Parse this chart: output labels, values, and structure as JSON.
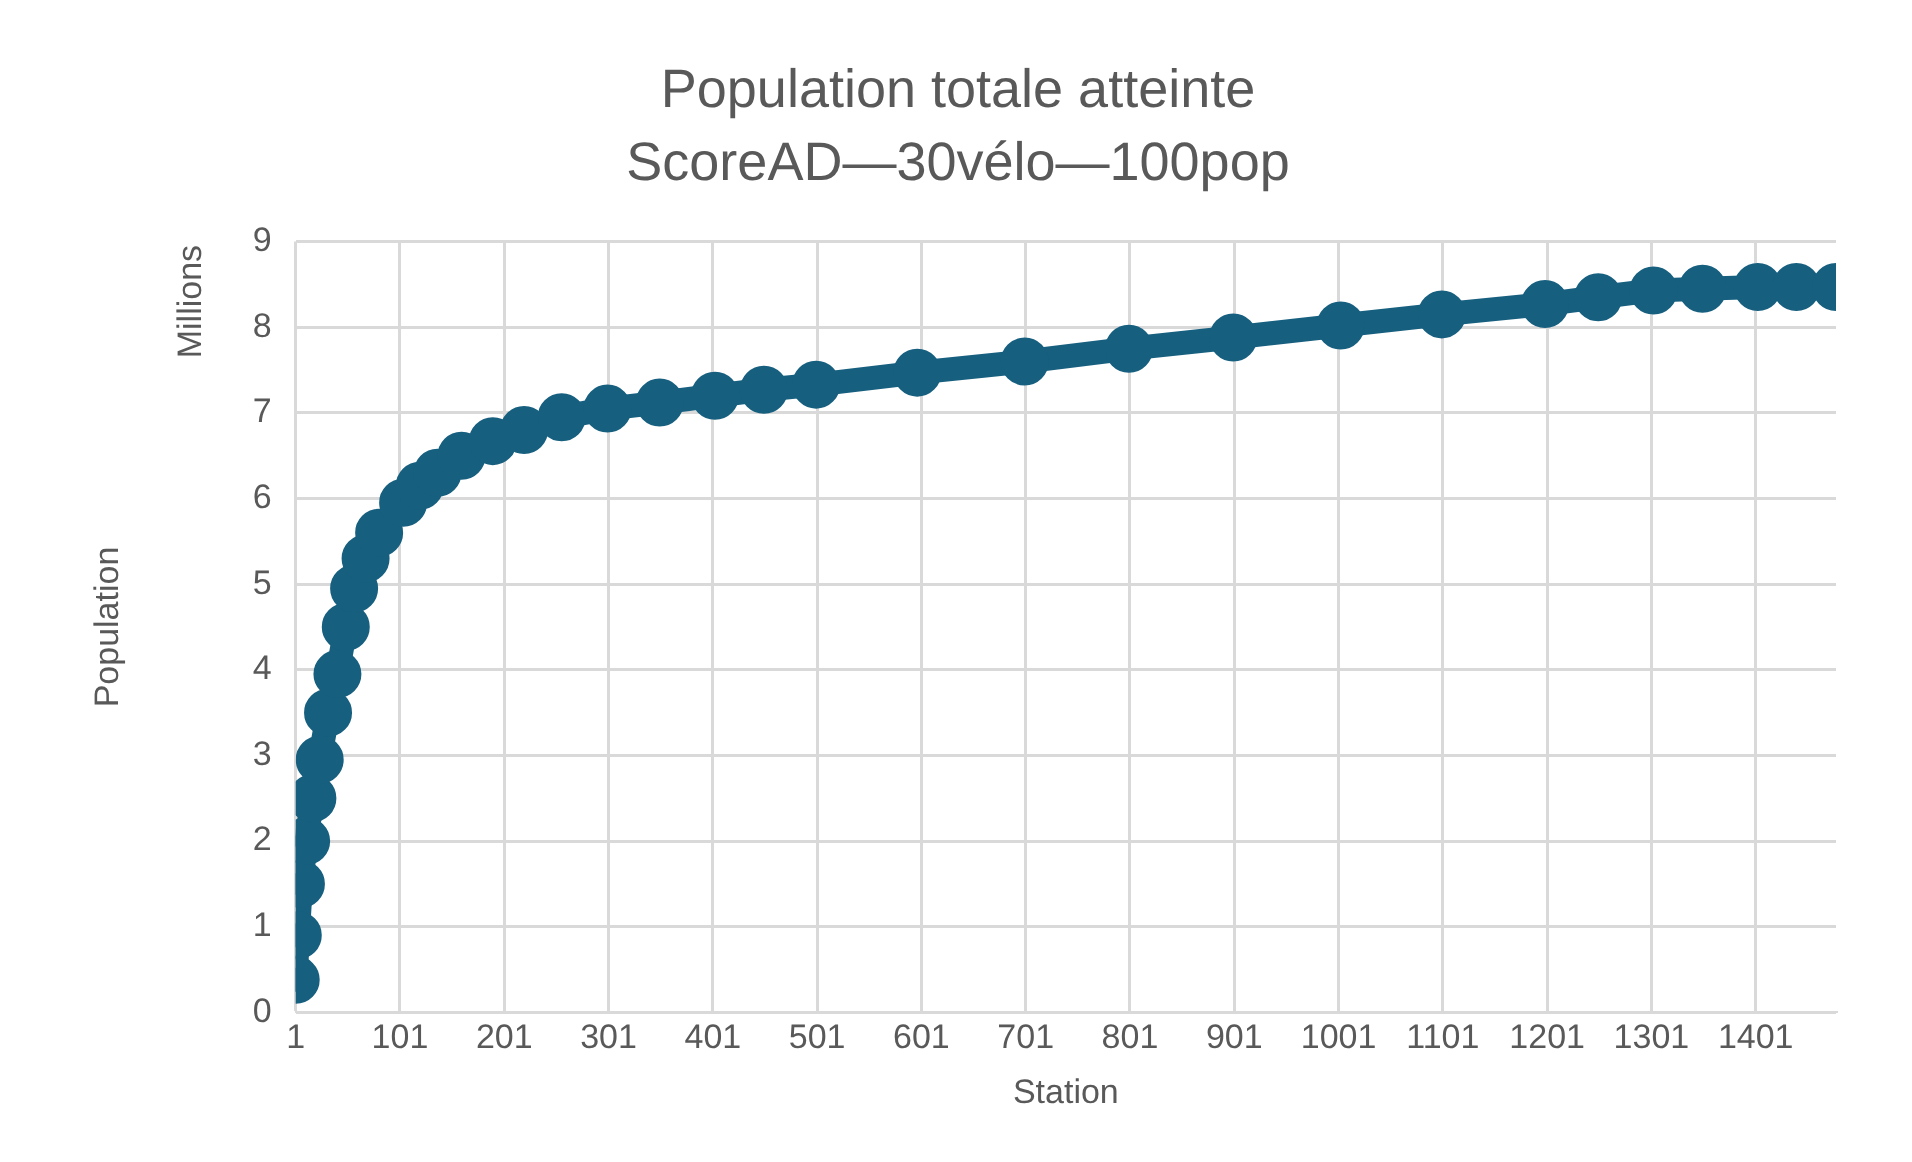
{
  "chart_data": {
    "type": "line",
    "title": "Population totale atteinte",
    "subtitle": "ScoreAD—30vélo—100pop",
    "xlabel": "Station",
    "ylabel": "Population",
    "annotations": [
      "Millions"
    ],
    "x": [
      1,
      3,
      6,
      11,
      17,
      24,
      32,
      41,
      49,
      57,
      68,
      81,
      104,
      120,
      137,
      160,
      190,
      220,
      256,
      300,
      350,
      403,
      450,
      500,
      597,
      700,
      800,
      900,
      1003,
      1100,
      1199,
      1250,
      1303,
      1350,
      1403,
      1440,
      1478
    ],
    "series": [
      {
        "color": "#175f7f",
        "values": [
          0.38,
          0.9,
          1.5,
          2.0,
          2.5,
          2.95,
          3.5,
          3.95,
          4.5,
          4.95,
          5.3,
          5.6,
          5.95,
          6.15,
          6.3,
          6.5,
          6.67,
          6.8,
          6.95,
          7.05,
          7.12,
          7.2,
          7.27,
          7.33,
          7.47,
          7.6,
          7.75,
          7.88,
          8.02,
          8.15,
          8.27,
          8.35,
          8.43,
          8.45,
          8.47,
          8.47,
          8.47
        ]
      }
    ],
    "xlim": [
      1,
      1478
    ],
    "xticks": [
      1,
      101,
      201,
      301,
      401,
      501,
      601,
      701,
      801,
      901,
      1001,
      1101,
      1201,
      1301,
      1401
    ],
    "ylim": [
      0,
      9
    ],
    "yticks": [
      0,
      1,
      2,
      3,
      4,
      5,
      6,
      7,
      8,
      9
    ],
    "grid": true,
    "legend": false,
    "marker": "circle"
  }
}
